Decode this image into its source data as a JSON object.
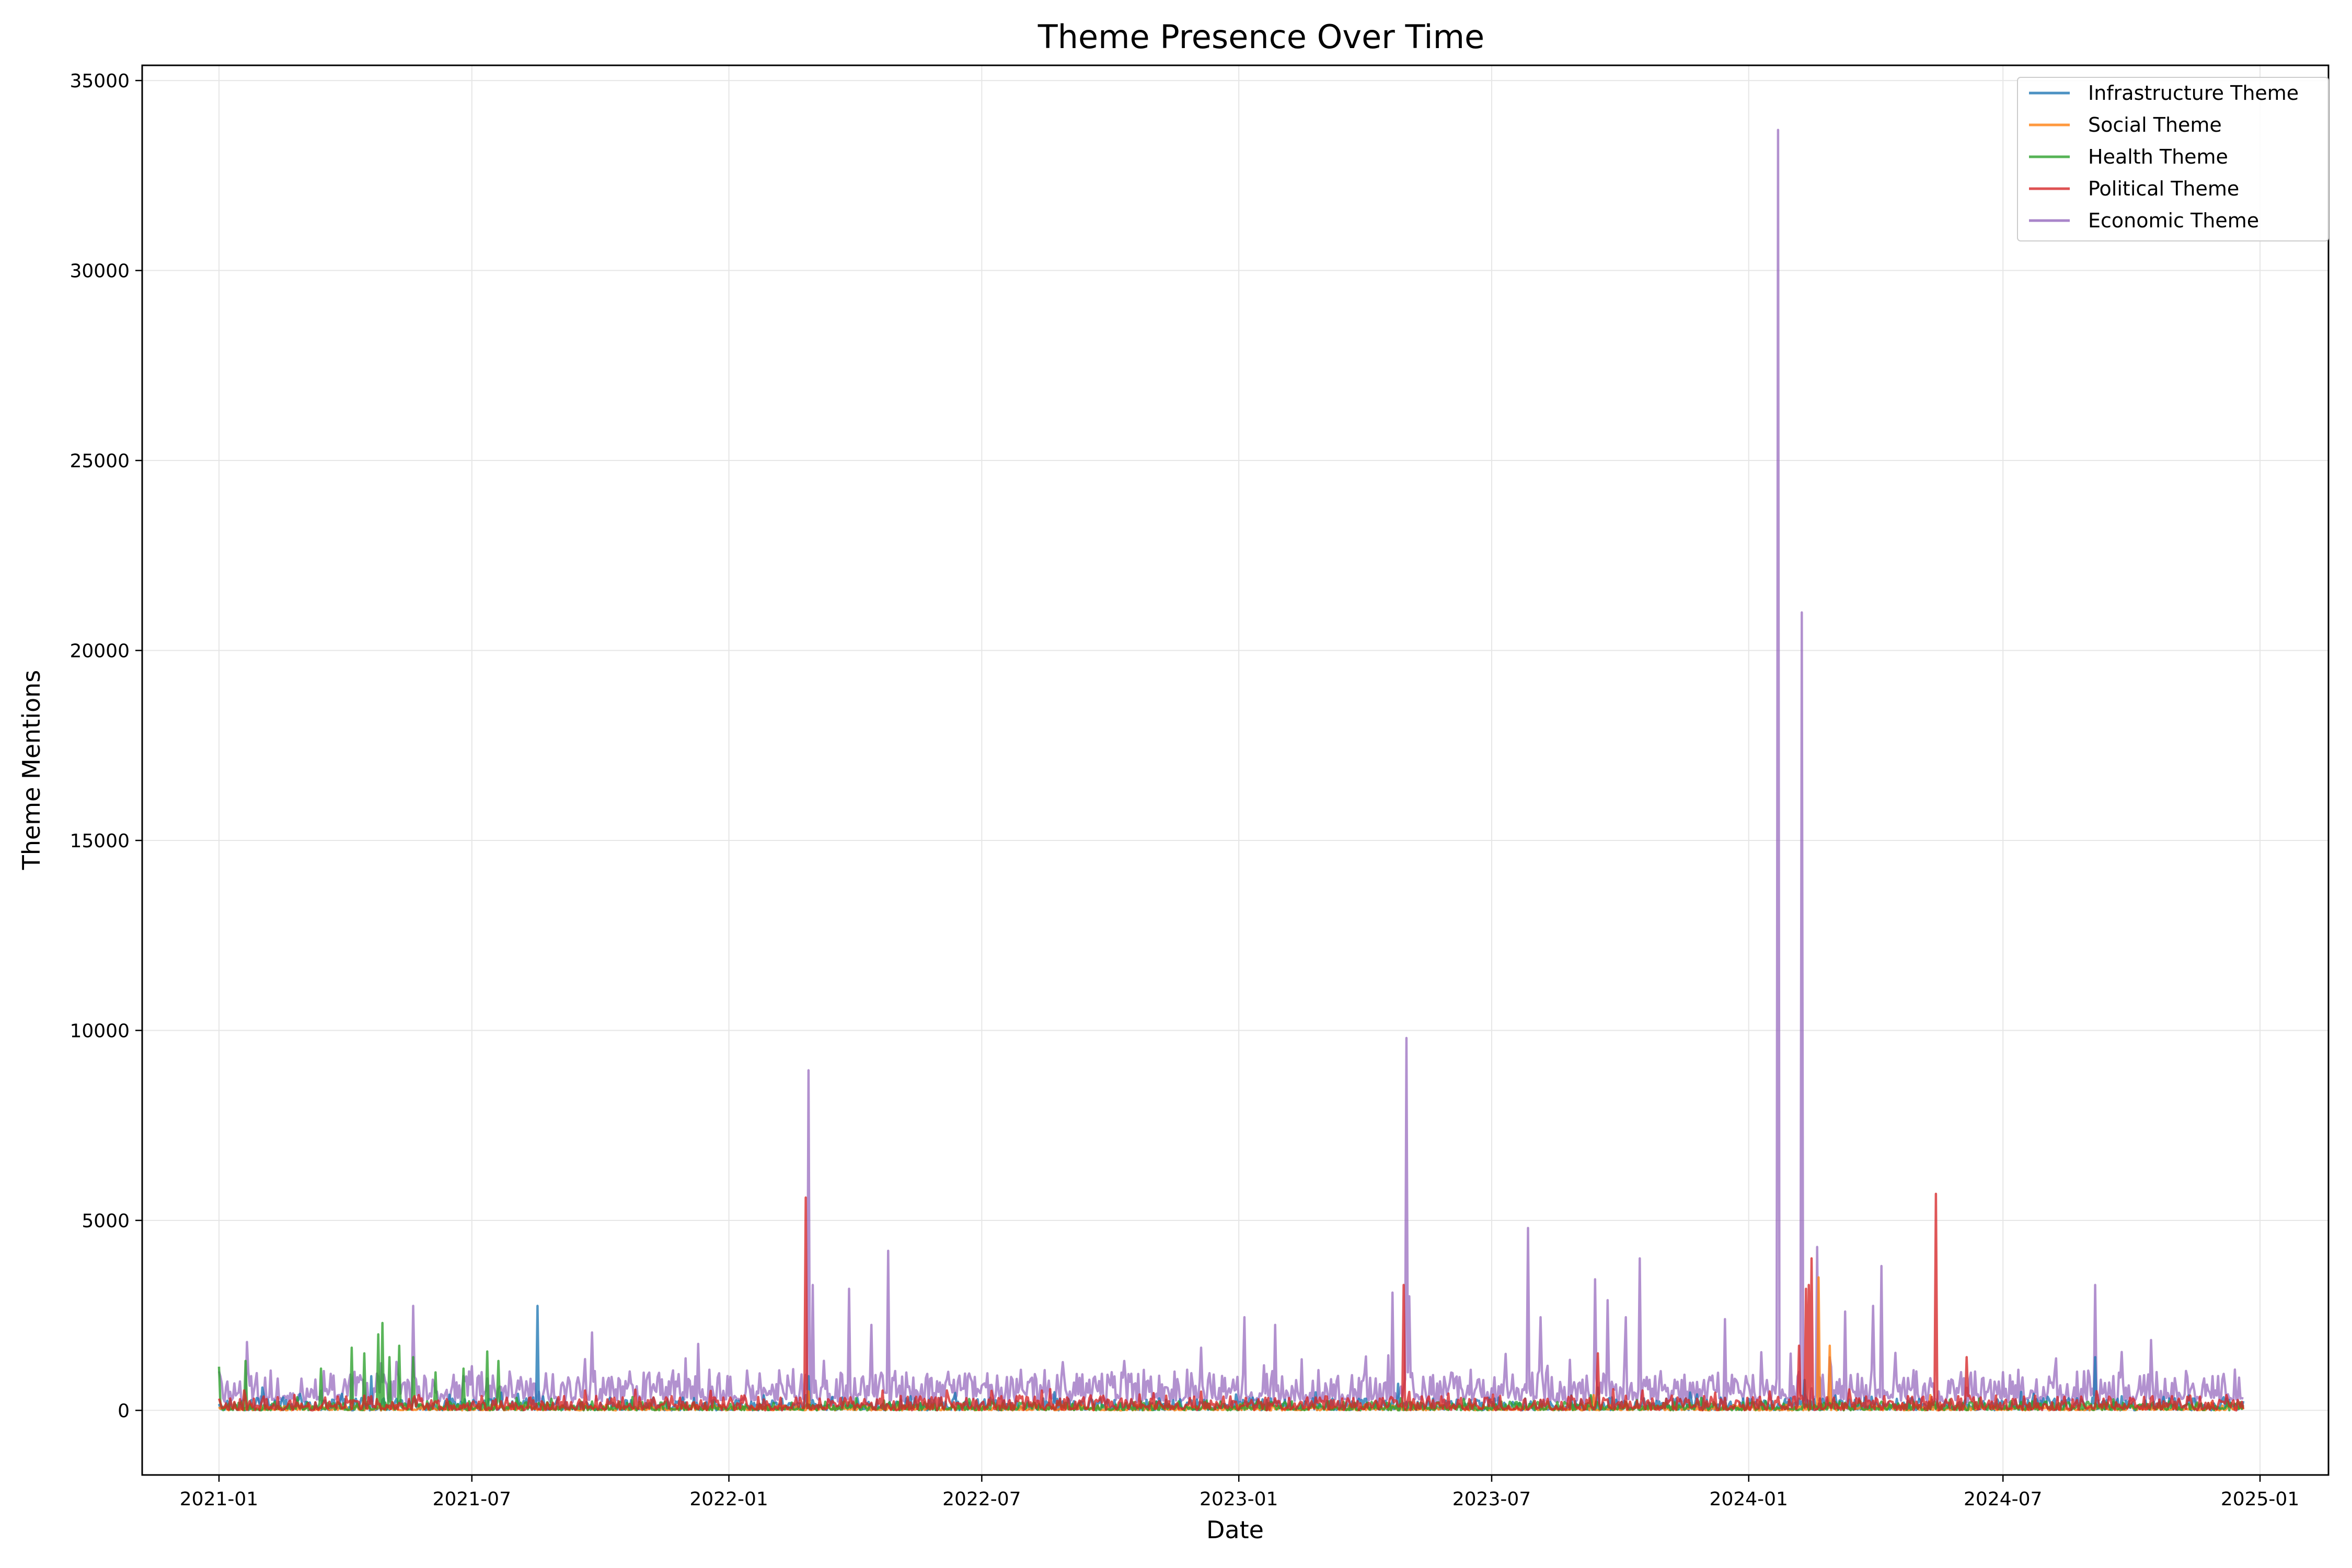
{
  "chart_data": {
    "type": "line",
    "title": "Theme Presence Over Time",
    "xlabel": "Date",
    "ylabel": "Theme Mentions",
    "x_range": [
      "2020-11-07",
      "2025-02-19"
    ],
    "ylim": [
      -1700,
      35400
    ],
    "x_ticks": [
      "2021-01",
      "2021-07",
      "2022-01",
      "2022-07",
      "2023-01",
      "2023-07",
      "2024-01",
      "2024-07",
      "2025-01"
    ],
    "y_ticks": [
      0,
      5000,
      10000,
      15000,
      20000,
      25000,
      30000,
      35000
    ],
    "grid": true,
    "legend_position": "top-right",
    "series": [
      {
        "name": "Infrastructure Theme",
        "color": "#1f77b4",
        "baseline_range": [
          0,
          350
        ],
        "peaks": [
          [
            "2021-02-01",
            600
          ],
          [
            "2021-04-20",
            900
          ],
          [
            "2021-08-17",
            2750
          ],
          [
            "2022-02-27",
            900
          ],
          [
            "2023-04-25",
            700
          ],
          [
            "2023-09-15",
            600
          ],
          [
            "2024-02-10",
            800
          ],
          [
            "2024-09-05",
            1400
          ]
        ]
      },
      {
        "name": "Social Theme",
        "color": "#ff7f0e",
        "baseline_range": [
          0,
          150
        ],
        "peaks": [
          [
            "2022-02-27",
            500
          ],
          [
            "2023-09-12",
            400
          ],
          [
            "2024-02-20",
            3500
          ],
          [
            "2024-02-28",
            1700
          ],
          [
            "2024-05-10",
            400
          ]
        ]
      },
      {
        "name": "Health Theme",
        "color": "#2ca02c",
        "baseline_range": [
          0,
          250
        ],
        "peaks": [
          [
            "2021-01-01",
            1150
          ],
          [
            "2021-01-20",
            1300
          ],
          [
            "2021-03-15",
            1100
          ],
          [
            "2021-04-06",
            1650
          ],
          [
            "2021-04-15",
            1500
          ],
          [
            "2021-04-25",
            2000
          ],
          [
            "2021-04-28",
            2300
          ],
          [
            "2021-05-03",
            1400
          ],
          [
            "2021-05-10",
            1700
          ],
          [
            "2021-05-20",
            1400
          ],
          [
            "2021-06-05",
            1000
          ],
          [
            "2021-06-25",
            1100
          ],
          [
            "2021-07-12",
            1550
          ],
          [
            "2021-07-20",
            1300
          ],
          [
            "2023-09-10",
            400
          ]
        ]
      },
      {
        "name": "Political Theme",
        "color": "#d62728",
        "baseline_range": [
          0,
          400
        ],
        "peaks": [
          [
            "2022-02-25",
            5600
          ],
          [
            "2023-04-29",
            3300
          ],
          [
            "2023-09-15",
            1500
          ],
          [
            "2024-02-06",
            1700
          ],
          [
            "2024-02-11",
            3200
          ],
          [
            "2024-02-13",
            3300
          ],
          [
            "2024-02-15",
            4000
          ],
          [
            "2024-05-14",
            5700
          ],
          [
            "2024-06-05",
            1400
          ]
        ]
      },
      {
        "name": "Economic Theme",
        "color": "#9467bd",
        "baseline_range": [
          200,
          1100
        ],
        "peaks": [
          [
            "2021-01-21",
            1800
          ],
          [
            "2021-05-20",
            2750
          ],
          [
            "2021-09-25",
            2050
          ],
          [
            "2021-12-10",
            1750
          ],
          [
            "2022-02-27",
            8950
          ],
          [
            "2022-03-02",
            3300
          ],
          [
            "2022-03-28",
            3200
          ],
          [
            "2022-04-13",
            2250
          ],
          [
            "2022-04-25",
            4200
          ],
          [
            "2022-12-05",
            1650
          ],
          [
            "2023-01-05",
            2450
          ],
          [
            "2023-01-27",
            2250
          ],
          [
            "2023-04-21",
            3100
          ],
          [
            "2023-05-01",
            9800
          ],
          [
            "2023-05-03",
            3000
          ],
          [
            "2023-07-27",
            4800
          ],
          [
            "2023-08-05",
            2450
          ],
          [
            "2023-09-13",
            3450
          ],
          [
            "2023-09-22",
            2900
          ],
          [
            "2023-10-05",
            2450
          ],
          [
            "2023-10-15",
            4000
          ],
          [
            "2023-12-15",
            2400
          ],
          [
            "2024-01-22",
            33700
          ],
          [
            "2024-02-08",
            21000
          ],
          [
            "2024-02-19",
            4300
          ],
          [
            "2024-03-10",
            2600
          ],
          [
            "2024-03-30",
            2750
          ],
          [
            "2024-04-05",
            3800
          ],
          [
            "2024-09-05",
            3300
          ],
          [
            "2024-10-15",
            1850
          ]
        ]
      }
    ]
  }
}
